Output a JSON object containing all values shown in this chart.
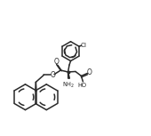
{
  "bg_color": "#ffffff",
  "line_color": "#2a2a2a",
  "line_width": 1.1,
  "fig_width": 1.7,
  "fig_height": 1.53,
  "dpi": 100,
  "xlim": [
    0,
    17
  ],
  "ylim": [
    0,
    15
  ]
}
